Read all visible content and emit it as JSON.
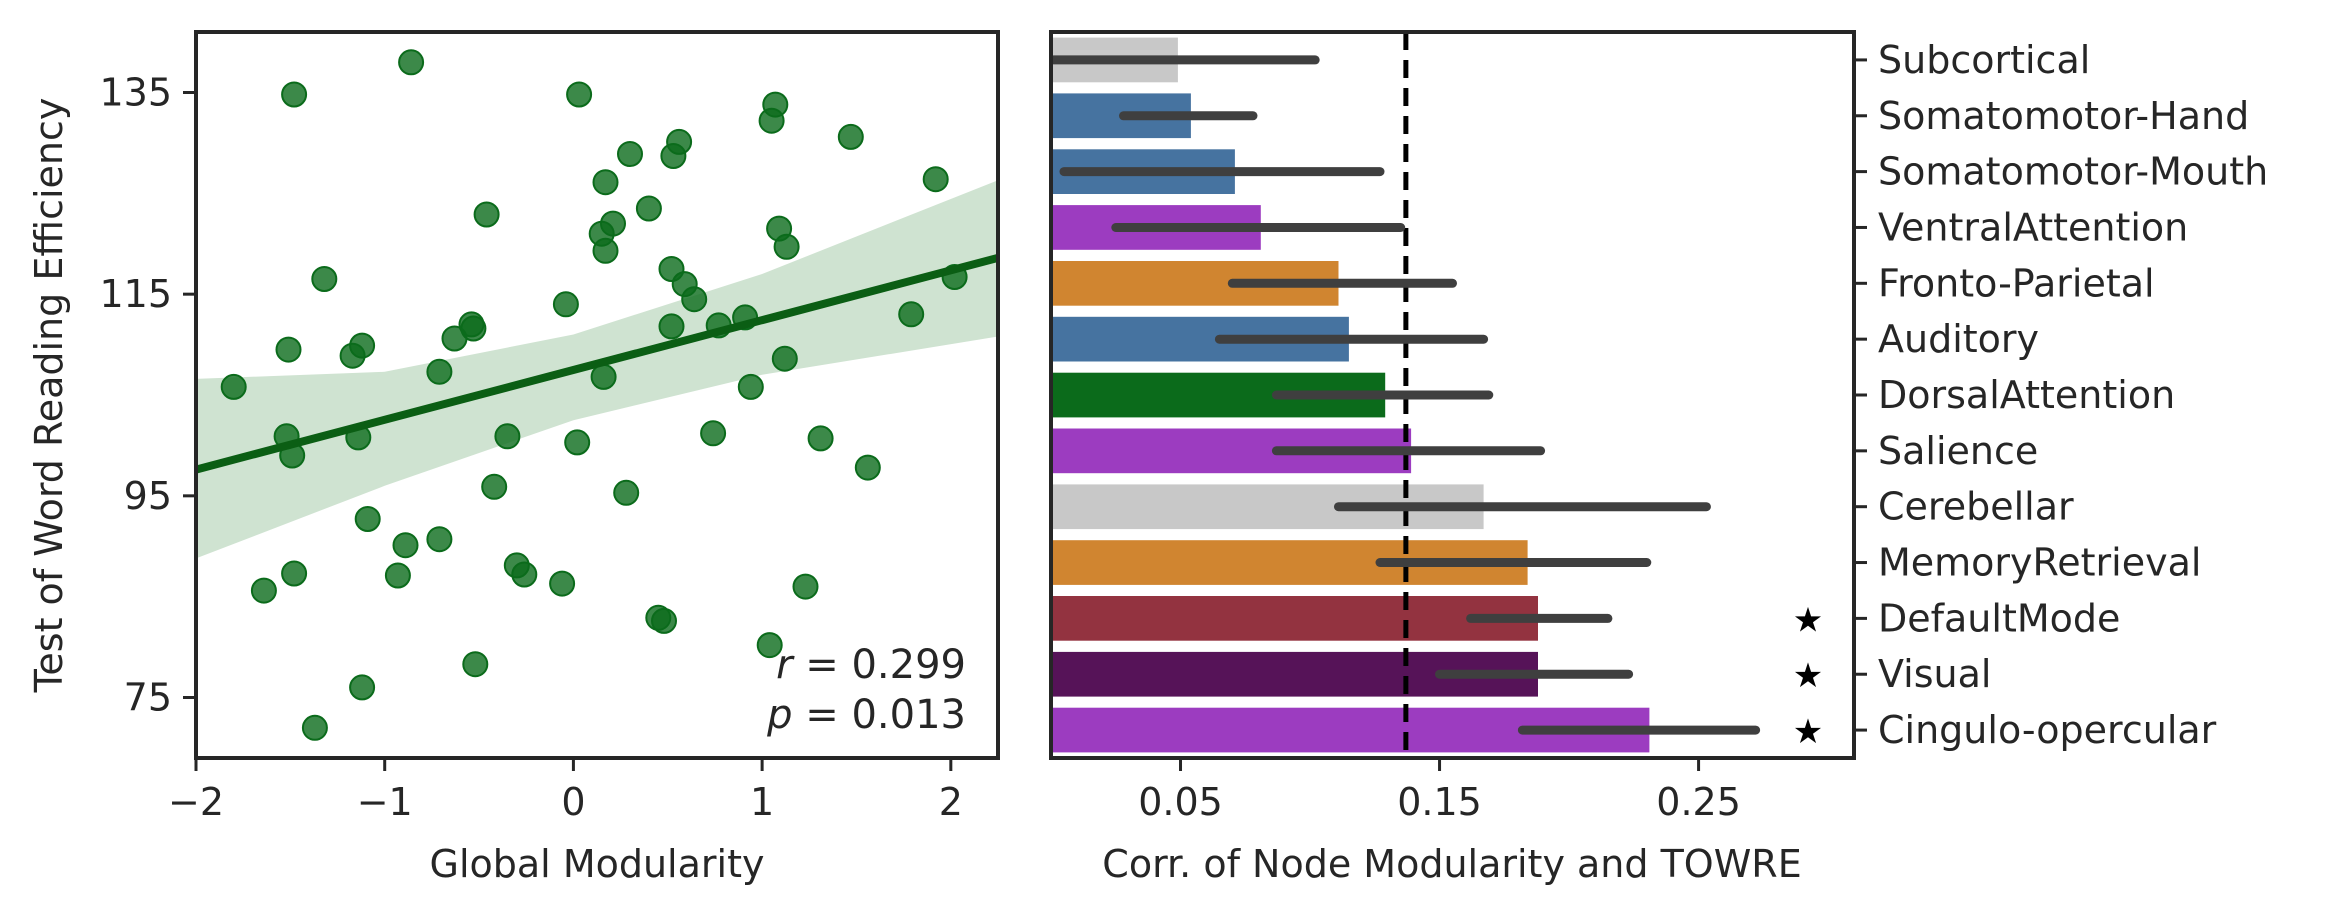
{
  "chart_data": [
    {
      "type": "scatter",
      "xlabel": "Global Modularity",
      "ylabel": "Test of Word Reading Efficiency",
      "xlim": [
        -2,
        2.25
      ],
      "ylim": [
        69,
        141
      ],
      "xticks": [
        -2,
        -1,
        0,
        1,
        2
      ],
      "xtick_labels": [
        "−2",
        "−1",
        "0",
        "1",
        "2"
      ],
      "yticks": [
        75,
        95,
        115,
        135
      ],
      "ytick_labels": [
        "75",
        "95",
        "115",
        "135"
      ],
      "point_color": "#0b6b1b",
      "regression": {
        "x0": -2,
        "y0": 97.6,
        "x1": 2.25,
        "y1": 118.6,
        "line_color": "#0b5e14",
        "band_color": "#cfe3d1",
        "band_lower": [
          [
            -2,
            88.8
          ],
          [
            -1,
            96.0
          ],
          [
            0,
            102.5
          ],
          [
            1,
            107.0
          ],
          [
            2.25,
            110.8
          ]
        ],
        "band_upper": [
          [
            -2,
            106.6
          ],
          [
            -1,
            107.3
          ],
          [
            0,
            111.0
          ],
          [
            1,
            117.0
          ],
          [
            2.25,
            126.3
          ]
        ]
      },
      "annotations": [
        {
          "label": "r",
          "value": " = 0.299"
        },
        {
          "label": "p",
          "value": " = 0.013"
        }
      ],
      "x": [
        -1.48,
        -0.86,
        0.03,
        1.07,
        1.05,
        1.47,
        0.56,
        0.3,
        0.53,
        1.92,
        0.17,
        0.4,
        -0.46,
        0.21,
        0.15,
        1.09,
        0.17,
        1.13,
        0.52,
        -1.32,
        0.59,
        0.64,
        -0.04,
        1.79,
        2.02,
        0.91,
        0.77,
        -0.54,
        -0.53,
        -0.63,
        0.52,
        -1.51,
        -1.17,
        -1.12,
        0.16,
        -0.71,
        -1.8,
        0.94,
        1.12,
        -1.52,
        -1.49,
        -1.14,
        -0.35,
        0.74,
        1.31,
        0.02,
        -0.42,
        1.56,
        0.28,
        -1.09,
        -0.71,
        -0.89,
        -0.3,
        -0.26,
        -0.93,
        -1.48,
        -1.64,
        -0.06,
        1.23,
        0.45,
        0.48,
        1.04,
        -0.52,
        -1.12,
        -1.37
      ],
      "y": [
        134.8,
        138.0,
        134.8,
        133.8,
        132.2,
        130.6,
        130.1,
        128.9,
        128.7,
        126.4,
        126.1,
        123.5,
        122.9,
        122.0,
        121.0,
        121.5,
        119.3,
        119.7,
        117.5,
        116.5,
        116.0,
        114.5,
        114.0,
        113.0,
        116.7,
        112.7,
        111.9,
        112.0,
        111.6,
        110.6,
        111.8,
        109.5,
        108.9,
        109.9,
        106.8,
        107.3,
        105.8,
        105.8,
        108.6,
        100.9,
        99.0,
        100.8,
        100.9,
        101.2,
        100.7,
        100.3,
        95.9,
        97.8,
        95.3,
        92.7,
        90.7,
        90.1,
        88.1,
        87.2,
        87.1,
        87.3,
        85.6,
        86.3,
        86.0,
        82.9,
        82.6,
        80.2,
        78.3,
        76.0,
        72.0
      ]
    },
    {
      "type": "bar",
      "orientation": "horizontal",
      "xlabel": "Corr. of Node Modularity and TOWRE",
      "xlim": [
        0,
        0.31
      ],
      "xticks": [
        0.05,
        0.15,
        0.25
      ],
      "xtick_labels": [
        "0.05",
        "0.15",
        "0.25"
      ],
      "reference_line_x": 0.137,
      "error_bar_color": "#3f3f3f",
      "categories": [
        "Subcortical",
        "Somatomotor-Hand",
        "Somatomotor-Mouth",
        "VentralAttention",
        "Fronto-Parietal",
        "Auditory",
        "DorsalAttention",
        "Salience",
        "Cerebellar",
        "MemoryRetrieval",
        "DefaultMode",
        "Visual",
        "Cingulo-opercular"
      ],
      "values": [
        0.049,
        0.054,
        0.071,
        0.081,
        0.111,
        0.115,
        0.129,
        0.139,
        0.167,
        0.184,
        0.188,
        0.188,
        0.231
      ],
      "ci_low": [
        0.001,
        0.028,
        0.005,
        0.025,
        0.07,
        0.065,
        0.087,
        0.087,
        0.111,
        0.127,
        0.162,
        0.15,
        0.182
      ],
      "ci_high": [
        0.102,
        0.078,
        0.127,
        0.135,
        0.155,
        0.167,
        0.169,
        0.189,
        0.253,
        0.23,
        0.215,
        0.223,
        0.272
      ],
      "colors": [
        "#c8c8c8",
        "#4673a0",
        "#4673a0",
        "#9c3cc0",
        "#d08530",
        "#4673a0",
        "#0b6b1b",
        "#9c3cc0",
        "#c8c8c8",
        "#d08530",
        "#933340",
        "#561358",
        "#9c3cc0"
      ],
      "significant": [
        false,
        false,
        false,
        false,
        false,
        false,
        false,
        false,
        false,
        false,
        true,
        true,
        true
      ],
      "significance_marker": "★"
    }
  ]
}
